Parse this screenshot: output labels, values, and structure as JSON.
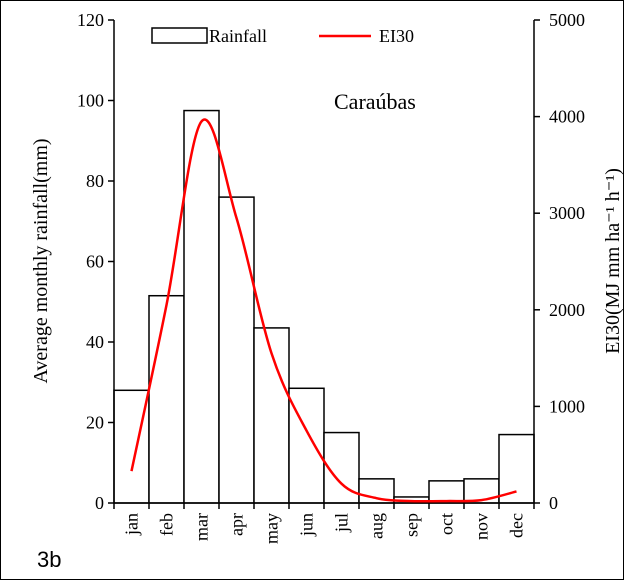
{
  "panel_label": "3b",
  "chart_data": {
    "type": "bar",
    "station": "Caraúbas",
    "categories": [
      "jan",
      "feb",
      "mar",
      "apr",
      "may",
      "jun",
      "jul",
      "aug",
      "sep",
      "oct",
      "nov",
      "dec"
    ],
    "series": [
      {
        "name": "Rainfall",
        "kind": "bar",
        "axis": "left",
        "values": [
          28,
          51.5,
          97.5,
          76,
          43.5,
          28.5,
          17.5,
          6,
          1.5,
          5.5,
          6,
          17
        ]
      },
      {
        "name": "EI30",
        "kind": "line",
        "axis": "right",
        "color": "#ff0000",
        "values": [
          330,
          2050,
          3950,
          2950,
          1550,
          750,
          200,
          50,
          20,
          20,
          30,
          120
        ]
      }
    ],
    "ylabel": "Average monthly rainfall(mm)",
    "y2label": "EI30(MJ mm ha⁻¹ h⁻¹)",
    "ylim": [
      0,
      120
    ],
    "y2lim": [
      0,
      5000
    ],
    "yticks": [
      0,
      20,
      40,
      60,
      80,
      100,
      120
    ],
    "y2ticks": [
      0,
      1000,
      2000,
      3000,
      4000,
      5000
    ],
    "legend": "top"
  }
}
